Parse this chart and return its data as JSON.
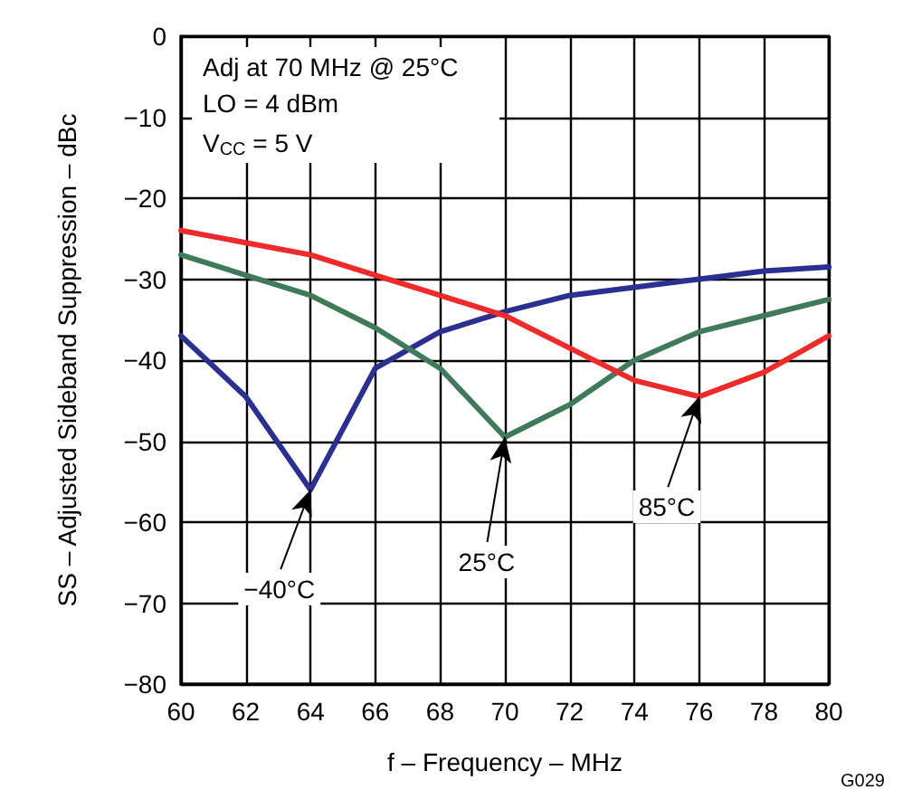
{
  "chart_data": {
    "type": "line",
    "xlabel": "f – Frequency – MHz",
    "ylabel": "SS – Adjusted Sideband Suppression – dBc",
    "x": [
      60,
      62,
      64,
      66,
      68,
      70,
      72,
      74,
      76,
      78,
      80
    ],
    "series": [
      {
        "color": "#2b2f8f",
        "values": [
          -37,
          -44.5,
          -56,
          -41,
          -36.5,
          -34,
          -32,
          -31,
          -30,
          -29,
          -28.5
        ]
      },
      {
        "color": "#3f7a5a",
        "values": [
          -27,
          -29.5,
          -32,
          -36,
          -41,
          -49.5,
          -45.5,
          -40,
          -36.5,
          -34.5,
          -32.5
        ]
      },
      {
        "color": "#ee2a2a",
        "values": [
          -24,
          -25.5,
          -27,
          -29.5,
          -32,
          -34.5,
          -38.5,
          -42.5,
          -44.5,
          -41.5,
          -37
        ]
      }
    ],
    "xlim": [
      60,
      80
    ],
    "xticks": [
      60,
      62,
      64,
      66,
      68,
      70,
      72,
      74,
      76,
      78,
      80
    ],
    "ylim": [
      -80,
      0
    ],
    "yticks": [
      -80,
      -70,
      -60,
      -50,
      -40,
      -30,
      -20,
      -10,
      0
    ],
    "grid": true,
    "marker": "none",
    "line_style": "solid",
    "annotations": [
      "Adj at 70 MHz @ 25°C",
      "LO = 4 dBm",
      "V$_{CC}$ = 5 V",
      "G029",
      {
        "text": "−40°C",
        "x": 64,
        "y": -56
      },
      {
        "text": "25°C",
        "x": 70,
        "y": -49.5
      },
      {
        "text": "85°C",
        "x": 76,
        "y": -44.5
      }
    ]
  }
}
